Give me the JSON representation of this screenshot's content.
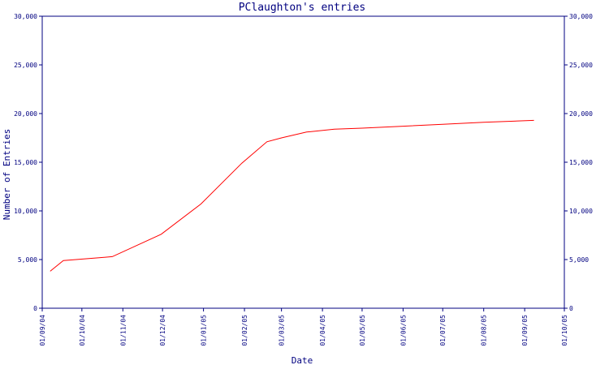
{
  "chart_data": {
    "type": "line",
    "title": "PClaughton's entries",
    "xlabel": "Date",
    "ylabel": "Number of Entries",
    "ylim": [
      0,
      30000
    ],
    "yticks": [
      0,
      5000,
      10000,
      15000,
      20000,
      25000,
      30000
    ],
    "ytick_labels": [
      "0",
      "5,000",
      "10,000",
      "15,000",
      "20,000",
      "25,000",
      "30,000"
    ],
    "xlim": [
      "2004-09-01",
      "2005-10-01"
    ],
    "xticks": [
      "2004-09-01",
      "2004-10-01",
      "2004-11-01",
      "2004-12-01",
      "2005-01-01",
      "2005-02-01",
      "2005-03-01",
      "2005-04-01",
      "2005-05-01",
      "2005-06-01",
      "2005-07-01",
      "2005-08-01",
      "2005-09-01",
      "2005-10-01"
    ],
    "xtick_labels": [
      "01/09/04",
      "01/10/04",
      "01/11/04",
      "01/12/04",
      "01/01/05",
      "01/02/05",
      "01/03/05",
      "01/04/05",
      "01/05/05",
      "01/06/05",
      "01/07/05",
      "01/08/05",
      "01/09/05",
      "01/10/05"
    ],
    "grid": false,
    "series": [
      {
        "color": "#ff0000",
        "points": [
          {
            "x": "2004-09-07",
            "y": 3800
          },
          {
            "x": "2004-09-17",
            "y": 4900
          },
          {
            "x": "2004-10-15",
            "y": 5200
          },
          {
            "x": "2004-10-24",
            "y": 5300
          },
          {
            "x": "2004-11-30",
            "y": 7600
          },
          {
            "x": "2004-12-30",
            "y": 10700
          },
          {
            "x": "2005-01-30",
            "y": 14900
          },
          {
            "x": "2005-02-18",
            "y": 17100
          },
          {
            "x": "2005-03-01",
            "y": 17500
          },
          {
            "x": "2005-03-20",
            "y": 18100
          },
          {
            "x": "2005-04-10",
            "y": 18400
          },
          {
            "x": "2005-05-01",
            "y": 18500
          },
          {
            "x": "2005-06-01",
            "y": 18700
          },
          {
            "x": "2005-07-01",
            "y": 18900
          },
          {
            "x": "2005-08-01",
            "y": 19100
          },
          {
            "x": "2005-09-08",
            "y": 19300
          }
        ]
      }
    ]
  }
}
